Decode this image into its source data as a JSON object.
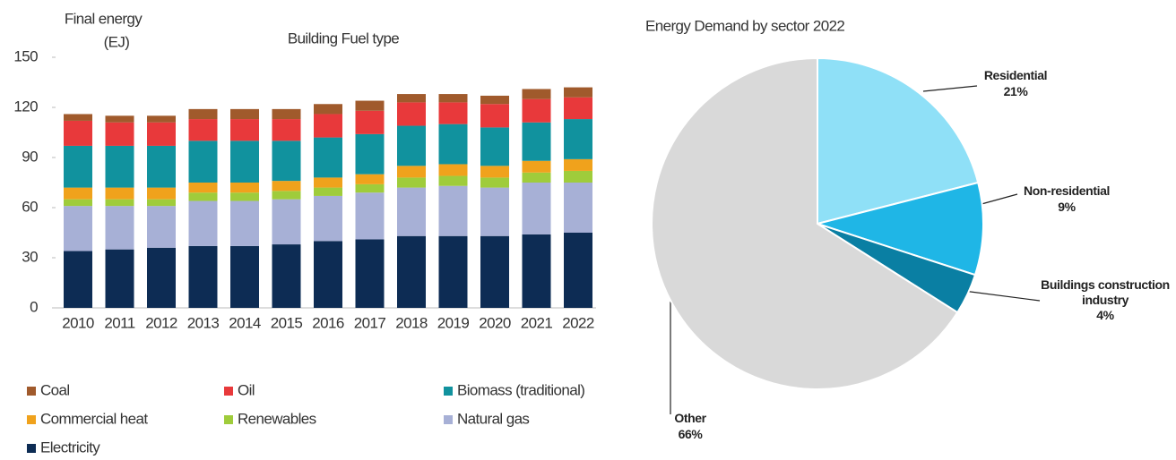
{
  "chart_data": [
    {
      "type": "bar",
      "stacked": true,
      "title": "Building Fuel type",
      "y_label": [
        "Final energy",
        "(EJ)"
      ],
      "categories": [
        "2010",
        "2011",
        "2012",
        "2013",
        "2014",
        "2015",
        "2016",
        "2017",
        "2018",
        "2019",
        "2020",
        "2021",
        "2022"
      ],
      "ylim": [
        0,
        150
      ],
      "yticks": [
        0,
        30,
        60,
        90,
        120,
        150
      ],
      "grid": false,
      "series": [
        {
          "name": "Electricity",
          "color": "#0d2c54",
          "values": [
            34,
            35,
            36,
            37,
            37,
            38,
            40,
            41,
            43,
            43,
            43,
            44,
            45
          ]
        },
        {
          "name": "Natural gas",
          "color": "#a7b0d6",
          "values": [
            27,
            26,
            25,
            27,
            27,
            27,
            27,
            28,
            29,
            30,
            29,
            31,
            30
          ]
        },
        {
          "name": "Renewables",
          "color": "#9fcc3b",
          "values": [
            4,
            4,
            4,
            5,
            5,
            5,
            5,
            5,
            6,
            6,
            6,
            6,
            7
          ]
        },
        {
          "name": "Commercial heat",
          "color": "#f0a21c",
          "values": [
            7,
            7,
            7,
            6,
            6,
            6,
            6,
            6,
            7,
            7,
            7,
            7,
            7
          ]
        },
        {
          "name": "Biomass (traditional)",
          "color": "#11929e",
          "values": [
            25,
            25,
            25,
            25,
            25,
            24,
            24,
            24,
            24,
            24,
            23,
            23,
            24
          ]
        },
        {
          "name": "Oil",
          "color": "#e8393b",
          "values": [
            15,
            14,
            14,
            13,
            13,
            13,
            14,
            14,
            14,
            13,
            14,
            14,
            13
          ]
        },
        {
          "name": "Coal",
          "color": "#a05a2c",
          "values": [
            4,
            4,
            4,
            6,
            6,
            6,
            6,
            6,
            5,
            5,
            5,
            6,
            6
          ]
        }
      ]
    },
    {
      "type": "pie",
      "title": "Energy Demand  by sector 2022",
      "categories": [
        "Residential",
        "Non-residential",
        "Buildings construction industry",
        "Other"
      ],
      "values": [
        21,
        9,
        4,
        66
      ],
      "value_labels": [
        "21%",
        "9%",
        "4%",
        "66%"
      ],
      "colors": [
        "#8fe0f7",
        "#1fb6e6",
        "#0a7fa3",
        "#d9d9d9"
      ]
    }
  ]
}
